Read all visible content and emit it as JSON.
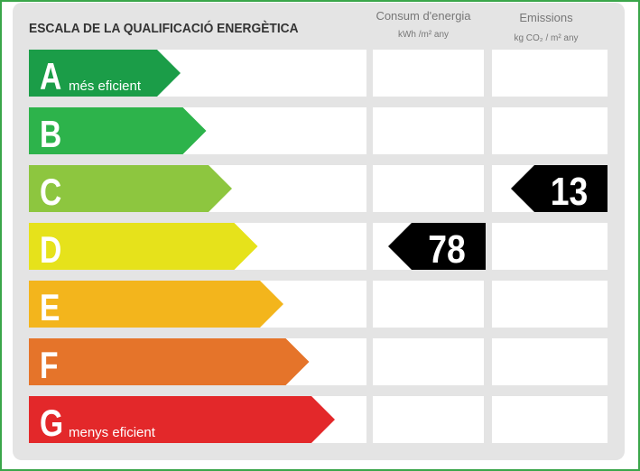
{
  "header": {
    "title": "ESCALA DE LA QUALIFICACIÓ ENERGÈTICA"
  },
  "columns": [
    {
      "label": "Consum d'energia",
      "unit": "kWh /m² any",
      "rating": {
        "value": 78,
        "class": "D"
      }
    },
    {
      "label": "Emissions",
      "unit": "kg CO₂ / m² any",
      "rating": {
        "value": 13,
        "class": "C"
      }
    }
  ],
  "rows": [
    {
      "letter": "A",
      "note": "més eficient",
      "color": "#1b9d48"
    },
    {
      "letter": "B",
      "color": "#2db34b"
    },
    {
      "letter": "C",
      "color": "#8dc63f"
    },
    {
      "letter": "D",
      "color": "#e6e21b"
    },
    {
      "letter": "E",
      "color": "#f3b51c"
    },
    {
      "letter": "F",
      "color": "#e5742a"
    },
    {
      "letter": "G",
      "note": "menys eficient",
      "color": "#e3282a"
    }
  ]
}
